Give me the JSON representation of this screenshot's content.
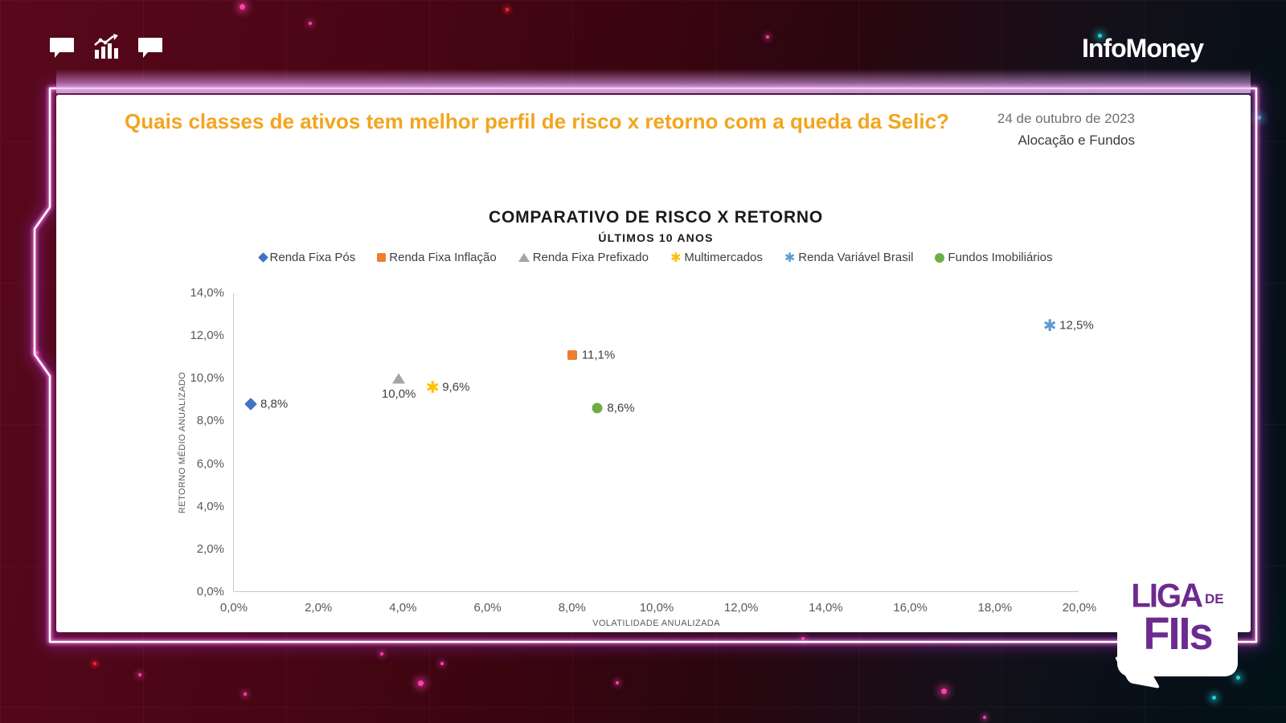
{
  "branding": {
    "infomoney": "InfoMoney",
    "liga_line1": "LIGA",
    "liga_line2": "DE",
    "liga_line3": "FIIs"
  },
  "icons": {
    "top_left": [
      "chat-bubble",
      "bar-chart-trend",
      "chat-bubble"
    ]
  },
  "header": {
    "title": "Quais classes de ativos tem melhor perfil de risco x retorno com a queda da Selic?",
    "date": "24 de outubro de 2023",
    "category": "Alocação e Fundos"
  },
  "colors": {
    "title_accent": "#F2A51F",
    "neon_frame": "#FF7AE0",
    "liga_purple": "#6D2A8F"
  },
  "chart_data": {
    "type": "scatter",
    "title": "COMPARATIVO DE RISCO X RETORNO",
    "subtitle": "ÚLTIMOS 10 ANOS",
    "xlabel": "VOLATILIDADE ANUALIZADA",
    "ylabel": "RETORNO MÉDIO ANUALIZADO",
    "xlim": [
      0,
      20
    ],
    "ylim": [
      0,
      14
    ],
    "x_ticks": [
      "0,0%",
      "2,0%",
      "4,0%",
      "6,0%",
      "8,0%",
      "10,0%",
      "12,0%",
      "14,0%",
      "16,0%",
      "18,0%",
      "20,0%"
    ],
    "y_ticks": [
      "0,0%",
      "2,0%",
      "4,0%",
      "6,0%",
      "8,0%",
      "10,0%",
      "12,0%",
      "14,0%"
    ],
    "grid": false,
    "legend_position": "top",
    "series": [
      {
        "name": "Renda Fixa Pós",
        "marker": "diamond",
        "color": "#4472C4",
        "x": 0.4,
        "y": 8.8,
        "label": "8,8%",
        "label_pos": "right"
      },
      {
        "name": "Renda Fixa Inflação",
        "marker": "square",
        "color": "#ED7D31",
        "x": 8.0,
        "y": 11.1,
        "label": "11,1%",
        "label_pos": "right"
      },
      {
        "name": "Renda Fixa Prefixado",
        "marker": "triangle",
        "color": "#A5A5A5",
        "x": 3.9,
        "y": 10.0,
        "label": "10,0%",
        "label_pos": "below"
      },
      {
        "name": "Multimercados",
        "marker": "asterisk",
        "color": "#FFC000",
        "x": 4.7,
        "y": 9.6,
        "label": "9,6%",
        "label_pos": "right"
      },
      {
        "name": "Renda Variável Brasil",
        "marker": "asterisk",
        "color": "#5B9BD5",
        "x": 19.3,
        "y": 12.5,
        "label": "12,5%",
        "label_pos": "right"
      },
      {
        "name": "Fundos Imobiliários",
        "marker": "circle",
        "color": "#70AD47",
        "x": 8.6,
        "y": 8.6,
        "label": "8,6%",
        "label_pos": "right"
      }
    ]
  }
}
